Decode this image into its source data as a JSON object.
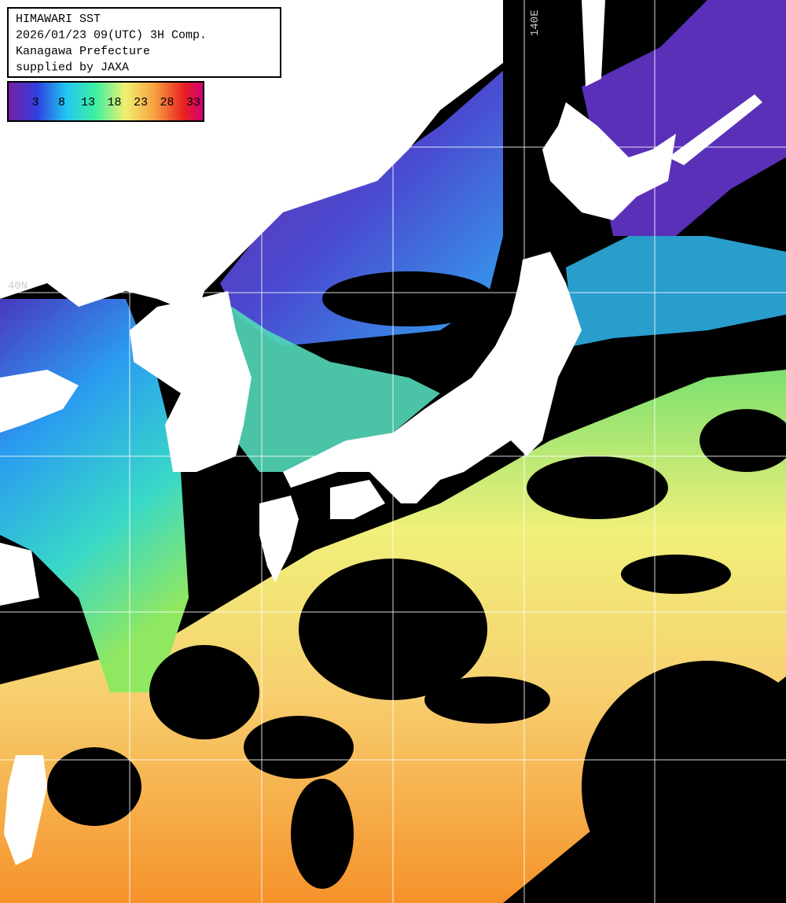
{
  "header": {
    "lines": [
      "HIMAWARI SST",
      "2026/01/23 09(UTC) 3H Comp.",
      "Kanagawa Prefecture",
      "supplied by JAXA"
    ]
  },
  "colorbar": {
    "ticks": [
      3,
      8,
      13,
      18,
      23,
      28,
      33
    ]
  },
  "grid_labels": {
    "longitude": "140E",
    "latitude": "40N"
  }
}
